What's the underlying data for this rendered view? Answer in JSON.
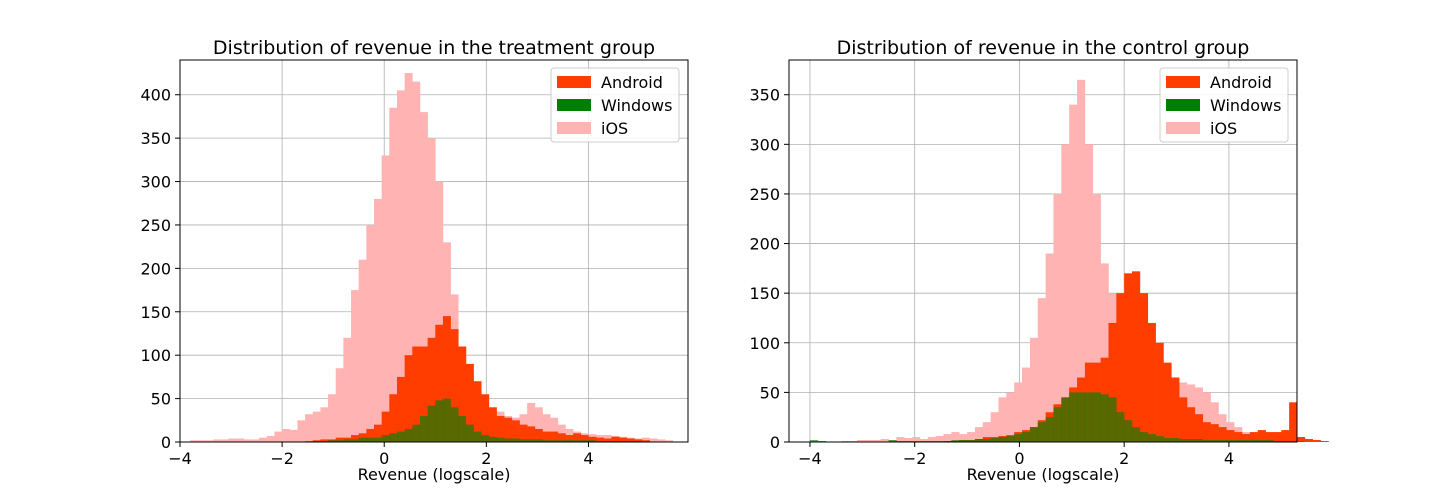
{
  "colors": {
    "Android": "#ff3d00",
    "Windows": "#008000",
    "iOS": "#ffb3b3"
  },
  "chart_data": [
    {
      "type": "histogram",
      "title": "Distribution of revenue in the treatment group",
      "xlabel": "Revenue (logscale)",
      "ylabel": "",
      "xlim": [
        -4.0,
        5.95
      ],
      "ylim": [
        0,
        440
      ],
      "xticks": [
        -4,
        -2,
        0,
        2,
        4
      ],
      "yticks": [
        0,
        50,
        100,
        150,
        200,
        250,
        300,
        350,
        400
      ],
      "grid": true,
      "legend": "top-right",
      "bin_width": 0.15,
      "bin_start": -3.8,
      "series": [
        {
          "name": "Android",
          "values": [
            0,
            0,
            0,
            0,
            0,
            0,
            0,
            0,
            0,
            0,
            0,
            0,
            0,
            0,
            0,
            1,
            2,
            3,
            3,
            5,
            5,
            8,
            10,
            15,
            20,
            35,
            55,
            75,
            100,
            110,
            110,
            120,
            135,
            145,
            130,
            110,
            90,
            70,
            55,
            40,
            30,
            28,
            25,
            20,
            18,
            15,
            12,
            12,
            10,
            8,
            10,
            8,
            6,
            5,
            4,
            6,
            5,
            4,
            3,
            2,
            0,
            0,
            0,
            0
          ]
        },
        {
          "name": "Windows",
          "values": [
            0,
            0,
            0,
            0,
            0,
            0,
            0,
            0,
            0,
            0,
            0,
            0,
            0,
            0,
            0,
            0,
            1,
            1,
            2,
            2,
            3,
            3,
            5,
            5,
            5,
            8,
            10,
            12,
            15,
            20,
            30,
            42,
            48,
            50,
            40,
            30,
            20,
            12,
            8,
            6,
            5,
            4,
            4,
            3,
            3,
            3,
            2,
            2,
            2,
            2,
            2,
            2,
            2,
            1,
            1,
            1,
            1,
            1,
            1,
            0,
            0,
            0,
            0,
            0
          ]
        },
        {
          "name": "iOS",
          "values": [
            2,
            2,
            2,
            3,
            3,
            4,
            4,
            3,
            3,
            5,
            7,
            12,
            15,
            14,
            25,
            32,
            35,
            40,
            55,
            85,
            120,
            175,
            210,
            250,
            280,
            330,
            385,
            405,
            425,
            415,
            380,
            350,
            300,
            230,
            170,
            110,
            80,
            55,
            45,
            38,
            35,
            30,
            28,
            32,
            45,
            40,
            32,
            28,
            20,
            15,
            12,
            10,
            9,
            8,
            8,
            7,
            6,
            5,
            4,
            5,
            4,
            3,
            2,
            0
          ]
        }
      ]
    },
    {
      "type": "histogram",
      "title": "Distribution of revenue in the control group",
      "xlabel": "Revenue (logscale)",
      "ylabel": "",
      "xlim": [
        -4.4,
        5.3
      ],
      "ylim": [
        0,
        385
      ],
      "xticks": [
        -4,
        -2,
        0,
        2,
        4
      ],
      "yticks": [
        0,
        50,
        100,
        150,
        200,
        250,
        300,
        350
      ],
      "grid": true,
      "legend": "top-right",
      "bin_width": 0.15,
      "bin_start": -4.0,
      "series": [
        {
          "name": "Android",
          "values": [
            0,
            0,
            0,
            0,
            0,
            0,
            0,
            0,
            0,
            0,
            0,
            0,
            0,
            0,
            0,
            0,
            0,
            1,
            1,
            2,
            2,
            3,
            5,
            5,
            6,
            7,
            10,
            12,
            15,
            22,
            30,
            38,
            45,
            55,
            65,
            80,
            80,
            85,
            120,
            150,
            170,
            172,
            150,
            120,
            100,
            80,
            65,
            45,
            35,
            28,
            20,
            18,
            15,
            12,
            10,
            8,
            10,
            12,
            10,
            10,
            12,
            40,
            5,
            3,
            2,
            1,
            0
          ]
        },
        {
          "name": "Windows",
          "values": [
            2,
            1,
            0,
            0,
            0,
            0,
            0,
            0,
            0,
            0,
            2,
            1,
            1,
            1,
            1,
            1,
            1,
            1,
            2,
            2,
            2,
            3,
            3,
            4,
            5,
            6,
            8,
            10,
            15,
            20,
            25,
            35,
            45,
            50,
            50,
            50,
            50,
            48,
            45,
            30,
            22,
            15,
            10,
            8,
            6,
            4,
            4,
            3,
            3,
            3,
            2,
            2,
            2,
            2,
            2,
            2,
            2,
            2,
            2,
            1,
            1,
            1,
            1,
            0,
            0,
            0,
            0
          ]
        },
        {
          "name": "iOS",
          "values": [
            0,
            0,
            0,
            0,
            1,
            1,
            2,
            2,
            2,
            3,
            2,
            5,
            4,
            5,
            3,
            5,
            6,
            8,
            10,
            8,
            10,
            15,
            20,
            30,
            45,
            50,
            60,
            75,
            105,
            145,
            190,
            250,
            300,
            340,
            365,
            300,
            250,
            180,
            150,
            125,
            90,
            70,
            55,
            48,
            45,
            55,
            58,
            60,
            58,
            55,
            50,
            40,
            28,
            20,
            15,
            10,
            9,
            7,
            5,
            5,
            6,
            4,
            3,
            2,
            1,
            1,
            0
          ]
        }
      ]
    }
  ]
}
